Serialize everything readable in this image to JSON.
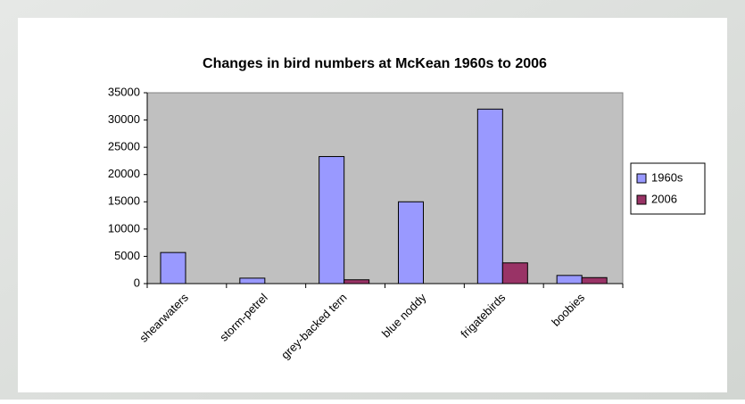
{
  "chart_data": {
    "type": "bar",
    "title": "Changes in bird numbers at McKean 1960s to 2006",
    "categories": [
      "shearwaters",
      "storm-petrel",
      "grey-backed tern",
      "blue noddy",
      "frigatebirds",
      "boobies"
    ],
    "series": [
      {
        "name": "1960s",
        "color": "#9999ff",
        "values": [
          5700,
          1000,
          23300,
          15000,
          32000,
          1500
        ]
      },
      {
        "name": "2006",
        "color": "#993366",
        "values": [
          0,
          0,
          700,
          0,
          3800,
          1100
        ]
      }
    ],
    "ylim": [
      0,
      35000
    ],
    "yticks": [
      0,
      5000,
      10000,
      15000,
      20000,
      25000,
      30000,
      35000
    ],
    "grid": false,
    "legend": "right"
  }
}
